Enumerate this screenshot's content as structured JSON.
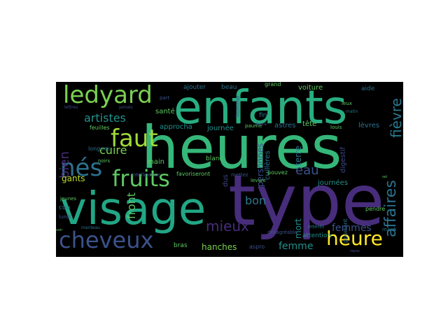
{
  "colors": {
    "purple": "#472d7b",
    "indigo": "#3b528b",
    "blue": "#2c728e",
    "teal": "#21918c",
    "green": "#28ae80",
    "lightgreen": "#5ec962",
    "lime": "#addc30",
    "yellow": "#fde725",
    "dim": "#2a788e",
    "faint": "#3e4989"
  },
  "words": {
    "heures": "heures",
    "enfants": "enfants",
    "type": "type",
    "visage": "visage",
    "ledyard": "ledyard",
    "faut": "faut",
    "fruits": "fruits",
    "nes": "nés",
    "cheveux": "cheveux",
    "heure": "heure",
    "artistes": "artistes",
    "affaires": "affaires",
    "fievre": "fièvre",
    "mieux": "mieux",
    "cuire": "cuire",
    "eau": "eau",
    "bon": "bon",
    "femmes": "femmes",
    "femme": "femme",
    "hanches": "hanches",
    "gants": "gants",
    "front": "front",
    "bien": "bien",
    "journees": "journées",
    "journee": "journée",
    "voiture": "voiture",
    "astres": "astres",
    "tete": "tête",
    "levres": "lèvres",
    "sante": "santé",
    "approcha": "approcha",
    "main": "main",
    "ajouter": "ajouter",
    "beau": "beau",
    "grand": "grand",
    "aide": "aide",
    "blanc": "blanc",
    "fin": "fin",
    "personnes": "personnes",
    "terre": "terre",
    "cuilleres": "cuillères",
    "bras": "bras",
    "aspro": "aspro",
    "mort": "mort",
    "attention": "attention",
    "favoriseront": "favoriseront",
    "intelligence": "intelligence",
    "pouvez": "pouvez",
    "mettez": "mettez",
    "pendre": "pendre",
    "mardi": "mardi",
    "feuilles": "feuilles",
    "longues": "longues",
    "noirs": "noirs",
    "part": "part",
    "paume": "paume",
    "leux": "leux",
    "matin": "matin",
    "louis": "louis",
    "digestif": "digestif",
    "cou": "cou",
    "lundi": "lundi",
    "jeunes": "jeunes",
    "manteau": "manteau",
    "homme": "homme",
    "levure": "levure",
    "interet": "intérêt",
    "pourtant": "pourtant",
    "desagreable": "désagréable",
    "dus": "dus",
    "lettres": "lettres",
    "jamais": "jamais",
    "laure": "laure",
    "repas": "repas",
    "voir": "voir",
    "sel": "sel"
  }
}
